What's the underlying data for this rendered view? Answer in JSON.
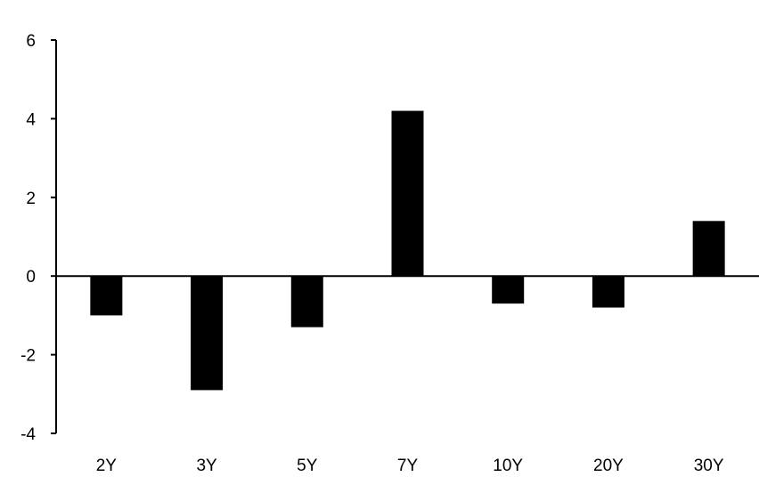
{
  "chart_data": {
    "type": "bar",
    "categories": [
      "2Y",
      "3Y",
      "5Y",
      "7Y",
      "10Y",
      "20Y",
      "30Y"
    ],
    "values": [
      -1.0,
      -2.9,
      -1.3,
      4.2,
      -0.7,
      -0.8,
      1.4
    ],
    "title": "",
    "xlabel": "",
    "ylabel": "",
    "ylim": [
      -4,
      6
    ],
    "yticks": [
      "-4",
      "-2",
      "0",
      "2",
      "4",
      "6"
    ],
    "grid": false,
    "bar_color": "#000000"
  }
}
